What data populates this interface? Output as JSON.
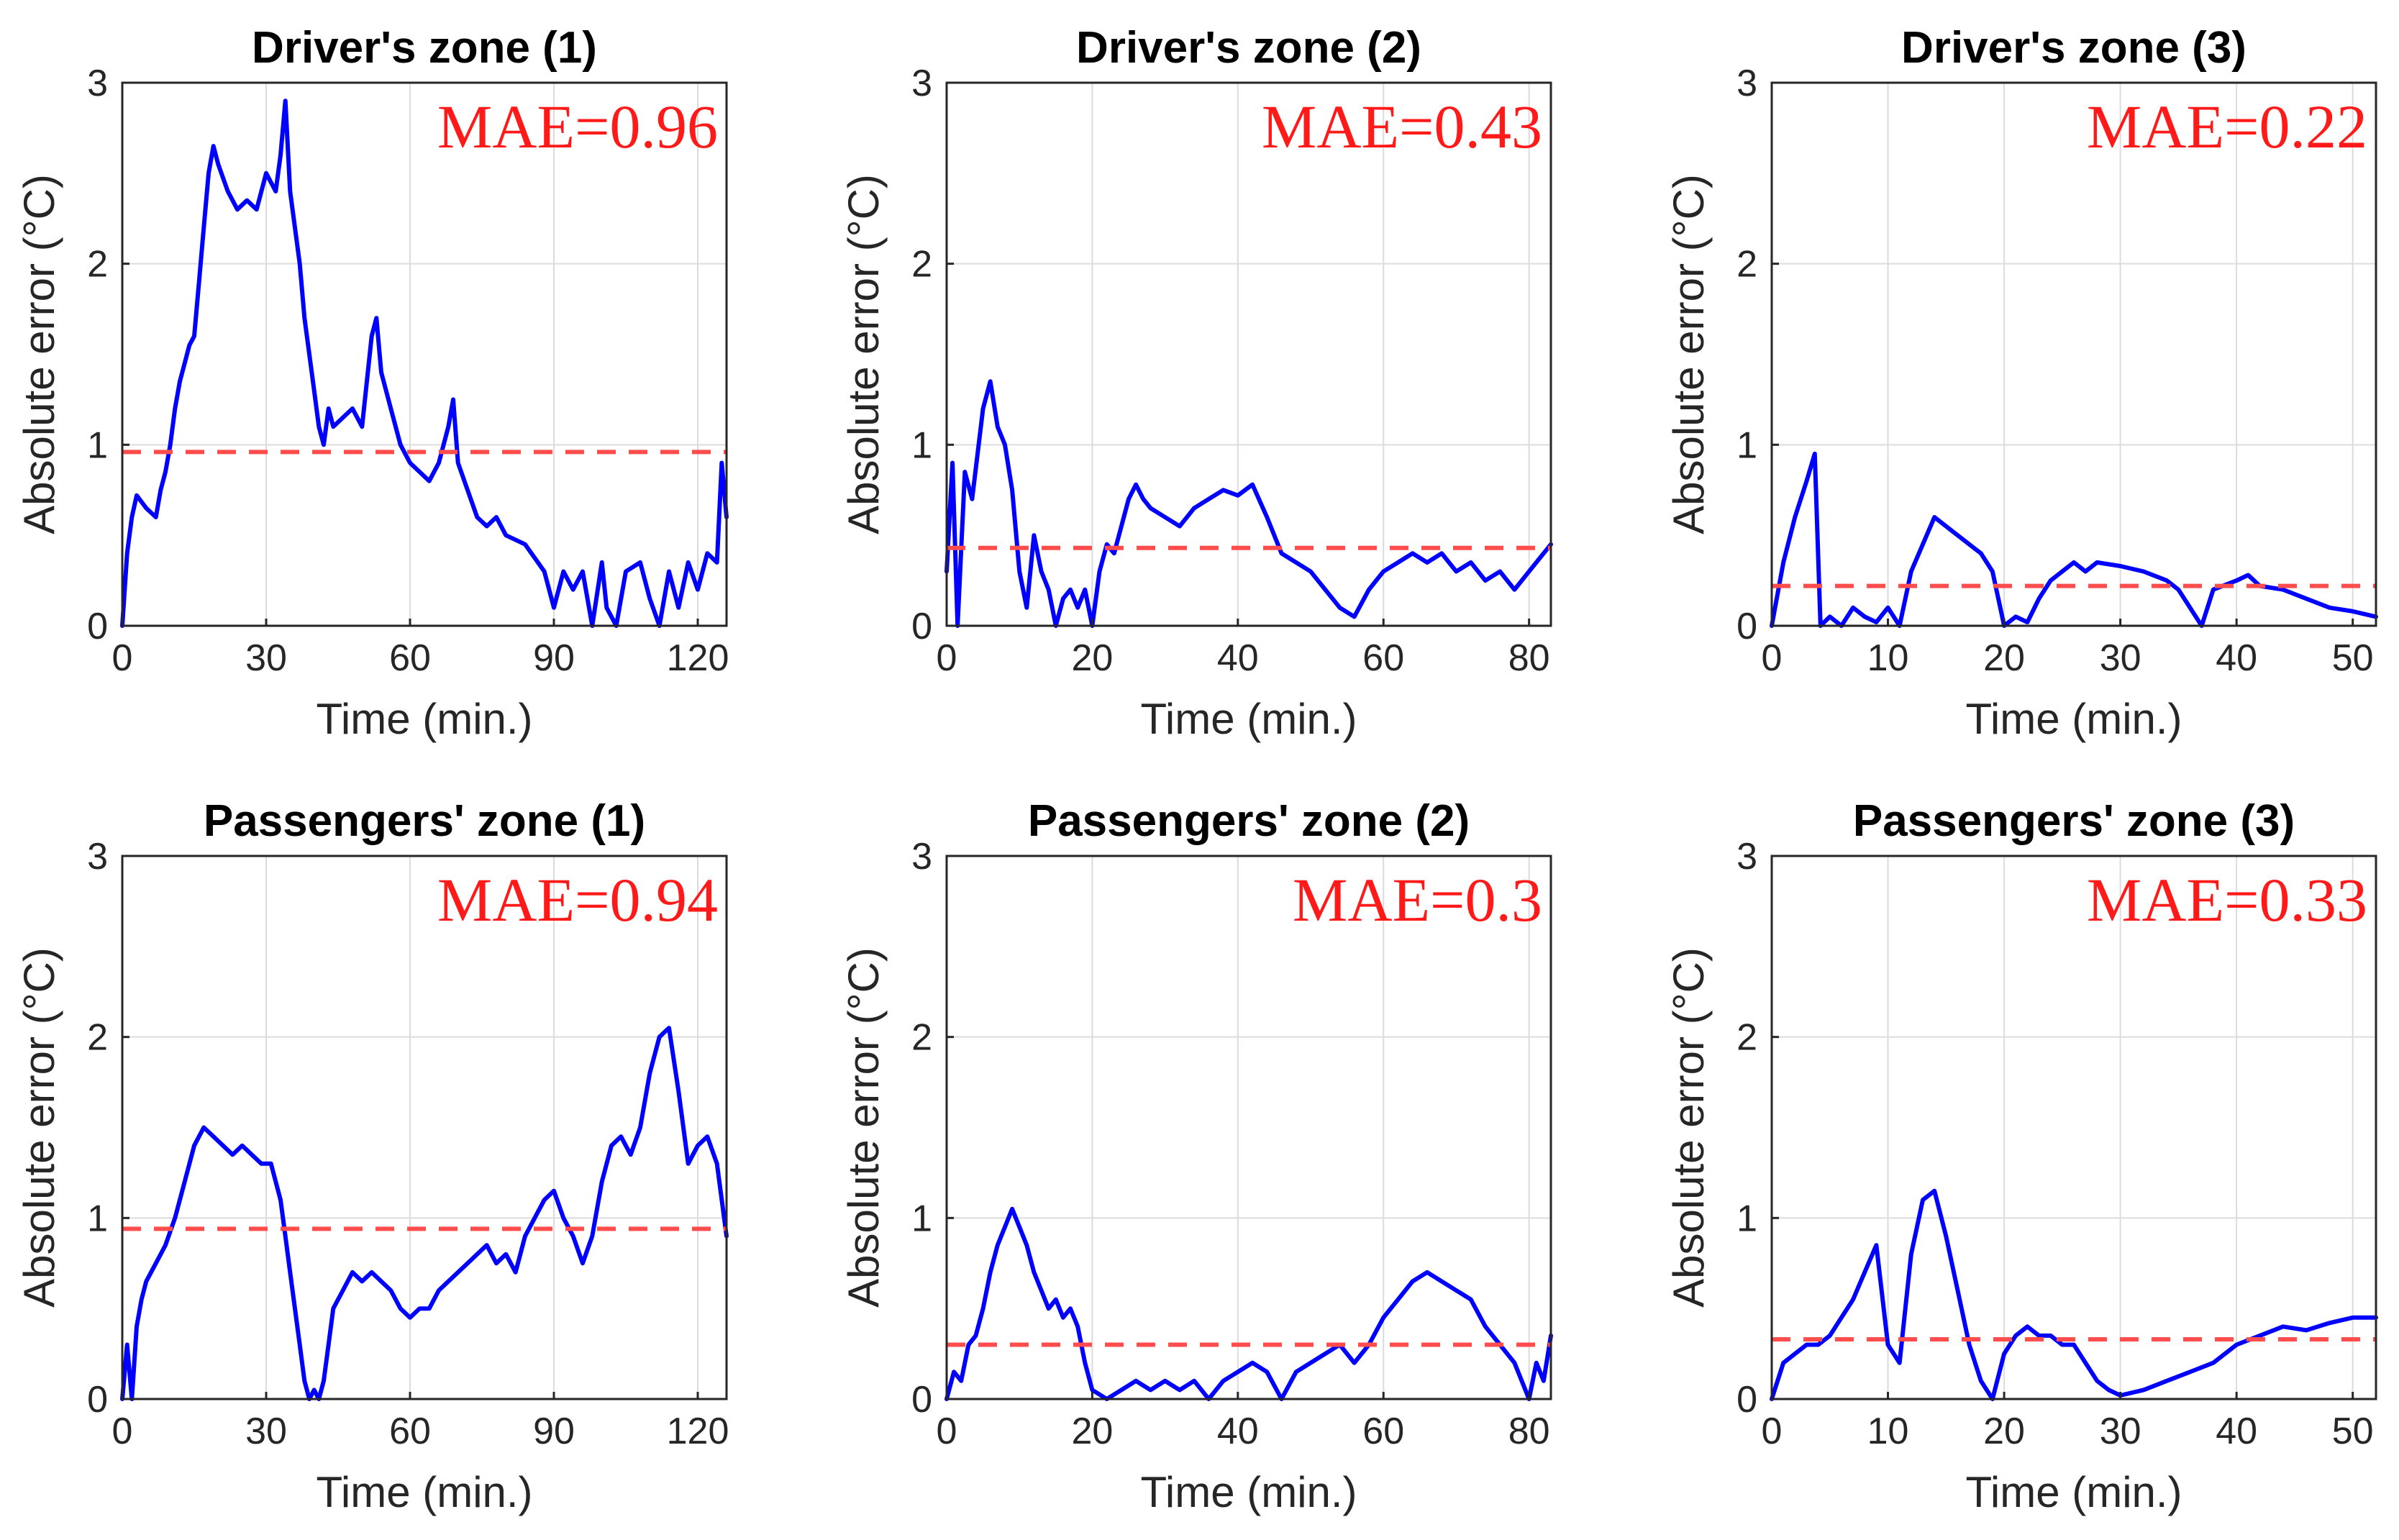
{
  "colors": {
    "series": "#0000ff",
    "mae_line": "#ff4d4d",
    "mae_text": "#ff1a1a",
    "grid": "#dcdcdc",
    "axis": "#262626"
  },
  "chart_data": [
    {
      "type": "line",
      "title": "Driver's zone (1)",
      "xlabel": "Time (min.)",
      "ylabel": "Absolute error (°C)",
      "xlim": [
        0,
        126
      ],
      "ylim": [
        0,
        3
      ],
      "xticks": [
        0,
        30,
        60,
        90,
        120
      ],
      "yticks": [
        0,
        1,
        2,
        3
      ],
      "grid": true,
      "mae_label": "MAE=0.96",
      "mae": 0.96,
      "series": [
        {
          "name": "Absolute error",
          "x": [
            0,
            1,
            2,
            3,
            5,
            7,
            8,
            9,
            10,
            11,
            12,
            13,
            14,
            15,
            16,
            17,
            18,
            19,
            20,
            22,
            24,
            26,
            28,
            30,
            32,
            33,
            34,
            35,
            36,
            37,
            38,
            39,
            40,
            41,
            42,
            43,
            44,
            46,
            48,
            50,
            52,
            53,
            54,
            56,
            58,
            60,
            62,
            64,
            66,
            68,
            69,
            70,
            72,
            74,
            76,
            78,
            80,
            84,
            88,
            90,
            92,
            94,
            96,
            98,
            100,
            101,
            103,
            105,
            108,
            110,
            112,
            114,
            116,
            118,
            120,
            122,
            124,
            125,
            126
          ],
          "y": [
            0,
            0.4,
            0.6,
            0.72,
            0.65,
            0.6,
            0.75,
            0.85,
            1.0,
            1.2,
            1.35,
            1.45,
            1.55,
            1.6,
            1.9,
            2.2,
            2.5,
            2.65,
            2.55,
            2.4,
            2.3,
            2.35,
            2.3,
            2.5,
            2.4,
            2.6,
            2.9,
            2.4,
            2.2,
            2.0,
            1.7,
            1.5,
            1.3,
            1.1,
            1.0,
            1.2,
            1.1,
            1.15,
            1.2,
            1.1,
            1.6,
            1.7,
            1.4,
            1.2,
            1.0,
            0.9,
            0.85,
            0.8,
            0.9,
            1.1,
            1.25,
            0.9,
            0.75,
            0.6,
            0.55,
            0.6,
            0.5,
            0.45,
            0.3,
            0.1,
            0.3,
            0.2,
            0.3,
            0.0,
            0.35,
            0.1,
            0.0,
            0.3,
            0.35,
            0.15,
            0.0,
            0.3,
            0.1,
            0.35,
            0.2,
            0.4,
            0.35,
            0.9,
            0.6
          ]
        }
      ]
    },
    {
      "type": "line",
      "title": "Driver's zone (2)",
      "xlabel": "Time (min.)",
      "ylabel": "Absolute error (°C)",
      "xlim": [
        0,
        83
      ],
      "ylim": [
        0,
        3
      ],
      "xticks": [
        0,
        20,
        40,
        60,
        80
      ],
      "yticks": [
        0,
        1,
        2,
        3
      ],
      "grid": true,
      "mae_label": "MAE=0.43",
      "mae": 0.43,
      "series": [
        {
          "name": "Absolute error",
          "x": [
            0,
            0.8,
            1.5,
            2.5,
            3.5,
            5,
            6,
            7,
            8,
            9,
            10,
            11,
            12,
            13,
            14,
            15,
            16,
            17,
            18,
            19,
            20,
            21,
            22,
            23,
            24,
            25,
            26,
            27,
            28,
            30,
            32,
            34,
            36,
            38,
            40,
            42,
            44,
            46,
            48,
            50,
            52,
            54,
            56,
            58,
            60,
            62,
            64,
            66,
            68,
            70,
            72,
            74,
            76,
            78,
            80,
            82,
            83
          ],
          "y": [
            0.3,
            0.9,
            0.0,
            0.85,
            0.7,
            1.2,
            1.35,
            1.1,
            1.0,
            0.75,
            0.3,
            0.1,
            0.5,
            0.3,
            0.2,
            0.0,
            0.15,
            0.2,
            0.1,
            0.2,
            0.0,
            0.3,
            0.45,
            0.4,
            0.55,
            0.7,
            0.78,
            0.7,
            0.65,
            0.6,
            0.55,
            0.65,
            0.7,
            0.75,
            0.72,
            0.78,
            0.6,
            0.4,
            0.35,
            0.3,
            0.2,
            0.1,
            0.05,
            0.2,
            0.3,
            0.35,
            0.4,
            0.35,
            0.4,
            0.3,
            0.35,
            0.25,
            0.3,
            0.2,
            0.3,
            0.4,
            0.45
          ]
        }
      ]
    },
    {
      "type": "line",
      "title": "Driver's zone (3)",
      "xlabel": "Time (min.)",
      "ylabel": "Absolute error (°C)",
      "xlim": [
        0,
        52
      ],
      "ylim": [
        0,
        3
      ],
      "xticks": [
        0,
        10,
        20,
        30,
        40,
        50
      ],
      "yticks": [
        0,
        1,
        2,
        3
      ],
      "grid": true,
      "mae_label": "MAE=0.22",
      "mae": 0.22,
      "series": [
        {
          "name": "Absolute error",
          "x": [
            0,
            1,
            2,
            3,
            3.7,
            4.2,
            5,
            6,
            7,
            8,
            9,
            10,
            11,
            12,
            13,
            14,
            15,
            16,
            17,
            18,
            19,
            20,
            21,
            22,
            23,
            24,
            25,
            26,
            27,
            28,
            30,
            32,
            34,
            35,
            36,
            37,
            38,
            40,
            41,
            42,
            44,
            46,
            48,
            50,
            52
          ],
          "y": [
            0.0,
            0.35,
            0.6,
            0.8,
            0.95,
            0.0,
            0.05,
            0.0,
            0.1,
            0.05,
            0.02,
            0.1,
            0.0,
            0.3,
            0.45,
            0.6,
            0.55,
            0.5,
            0.45,
            0.4,
            0.3,
            0.0,
            0.05,
            0.02,
            0.15,
            0.25,
            0.3,
            0.35,
            0.3,
            0.35,
            0.33,
            0.3,
            0.25,
            0.2,
            0.1,
            0.0,
            0.2,
            0.25,
            0.28,
            0.22,
            0.2,
            0.15,
            0.1,
            0.08,
            0.05
          ]
        }
      ]
    },
    {
      "type": "line",
      "title": "Passengers' zone (1)",
      "xlabel": "Time (min.)",
      "ylabel": "Absolute error (°C)",
      "xlim": [
        0,
        126
      ],
      "ylim": [
        0,
        3
      ],
      "xticks": [
        0,
        30,
        60,
        90,
        120
      ],
      "yticks": [
        0,
        1,
        2,
        3
      ],
      "grid": true,
      "mae_label": "MAE=0.94",
      "mae": 0.94,
      "series": [
        {
          "name": "Absolute error",
          "x": [
            0,
            1,
            2,
            3,
            4,
            5,
            7,
            9,
            11,
            13,
            15,
            17,
            19,
            21,
            23,
            25,
            27,
            29,
            31,
            33,
            34,
            35,
            36,
            37,
            38,
            39,
            40,
            41,
            42,
            43,
            44,
            46,
            48,
            50,
            52,
            54,
            56,
            58,
            60,
            62,
            64,
            66,
            68,
            70,
            72,
            74,
            76,
            78,
            80,
            82,
            84,
            86,
            88,
            90,
            92,
            94,
            96,
            98,
            100,
            102,
            104,
            106,
            108,
            110,
            112,
            114,
            116,
            118,
            120,
            122,
            124,
            126
          ],
          "y": [
            0.0,
            0.3,
            0.0,
            0.4,
            0.55,
            0.65,
            0.75,
            0.85,
            1.0,
            1.2,
            1.4,
            1.5,
            1.45,
            1.4,
            1.35,
            1.4,
            1.35,
            1.3,
            1.3,
            1.1,
            0.9,
            0.7,
            0.5,
            0.3,
            0.1,
            0.0,
            0.05,
            0.0,
            0.1,
            0.3,
            0.5,
            0.6,
            0.7,
            0.65,
            0.7,
            0.65,
            0.6,
            0.5,
            0.45,
            0.5,
            0.5,
            0.6,
            0.65,
            0.7,
            0.75,
            0.8,
            0.85,
            0.75,
            0.8,
            0.7,
            0.9,
            1.0,
            1.1,
            1.15,
            1.0,
            0.9,
            0.75,
            0.9,
            1.2,
            1.4,
            1.45,
            1.35,
            1.5,
            1.8,
            2.0,
            2.05,
            1.7,
            1.3,
            1.4,
            1.45,
            1.3,
            0.9
          ]
        }
      ]
    },
    {
      "type": "line",
      "title": "Passengers' zone (2)",
      "xlabel": "Time (min.)",
      "ylabel": "Absolute error (°C)",
      "xlim": [
        0,
        83
      ],
      "ylim": [
        0,
        3
      ],
      "xticks": [
        0,
        20,
        40,
        60,
        80
      ],
      "yticks": [
        0,
        1,
        2,
        3
      ],
      "grid": true,
      "mae_label": "MAE=0.3",
      "mae": 0.3,
      "series": [
        {
          "name": "Absolute error",
          "x": [
            0,
            1,
            2,
            3,
            4,
            5,
            6,
            7,
            8,
            9,
            10,
            11,
            12,
            13,
            14,
            15,
            16,
            17,
            18,
            19,
            20,
            22,
            24,
            26,
            28,
            30,
            32,
            34,
            36,
            38,
            40,
            42,
            44,
            46,
            48,
            50,
            52,
            54,
            56,
            58,
            60,
            62,
            64,
            66,
            68,
            70,
            72,
            74,
            76,
            78,
            80,
            81,
            82,
            83
          ],
          "y": [
            0.0,
            0.15,
            0.1,
            0.3,
            0.35,
            0.5,
            0.7,
            0.85,
            0.95,
            1.05,
            0.95,
            0.85,
            0.7,
            0.6,
            0.5,
            0.55,
            0.45,
            0.5,
            0.4,
            0.2,
            0.05,
            0.0,
            0.05,
            0.1,
            0.05,
            0.1,
            0.05,
            0.1,
            0.0,
            0.1,
            0.15,
            0.2,
            0.15,
            0.0,
            0.15,
            0.2,
            0.25,
            0.3,
            0.2,
            0.3,
            0.45,
            0.55,
            0.65,
            0.7,
            0.65,
            0.6,
            0.55,
            0.4,
            0.3,
            0.2,
            0.0,
            0.2,
            0.1,
            0.35
          ]
        }
      ]
    },
    {
      "type": "line",
      "title": "Passengers' zone (3)",
      "xlabel": "Time (min.)",
      "ylabel": "Absolute error (°C)",
      "xlim": [
        0,
        52
      ],
      "ylim": [
        0,
        3
      ],
      "xticks": [
        0,
        10,
        20,
        30,
        40,
        50
      ],
      "yticks": [
        0,
        1,
        2,
        3
      ],
      "grid": true,
      "mae_label": "MAE=0.33",
      "mae": 0.33,
      "series": [
        {
          "name": "Absolute error",
          "x": [
            0,
            1,
            2,
            3,
            4,
            5,
            6,
            7,
            8,
            9,
            10,
            11,
            12,
            13,
            14,
            15,
            16,
            17,
            18,
            19,
            20,
            21,
            22,
            23,
            24,
            25,
            26,
            27,
            28,
            29,
            30,
            32,
            34,
            36,
            38,
            40,
            42,
            44,
            46,
            48,
            50,
            52
          ],
          "y": [
            0.0,
            0.2,
            0.25,
            0.3,
            0.3,
            0.35,
            0.45,
            0.55,
            0.7,
            0.85,
            0.3,
            0.2,
            0.8,
            1.1,
            1.15,
            0.9,
            0.6,
            0.3,
            0.1,
            0.0,
            0.25,
            0.35,
            0.4,
            0.35,
            0.35,
            0.3,
            0.3,
            0.2,
            0.1,
            0.05,
            0.02,
            0.05,
            0.1,
            0.15,
            0.2,
            0.3,
            0.35,
            0.4,
            0.38,
            0.42,
            0.45,
            0.45
          ]
        }
      ]
    }
  ]
}
